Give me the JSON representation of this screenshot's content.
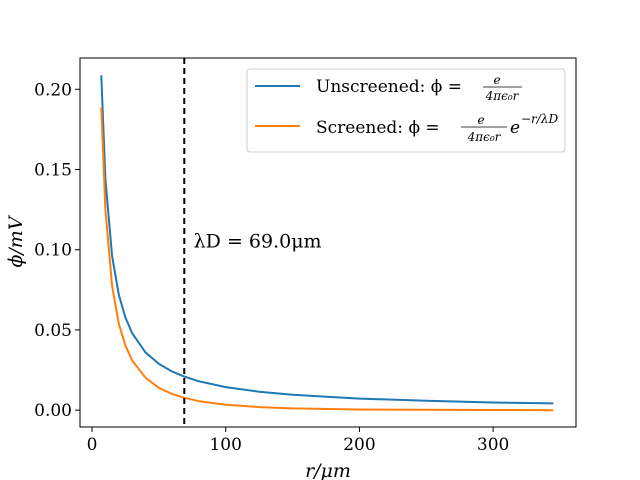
{
  "chart_data": {
    "type": "line",
    "xlabel": "r/μm",
    "ylabel": "ϕ/mV",
    "xlim": [
      -9,
      362
    ],
    "ylim": [
      -0.0105,
      0.2195
    ],
    "xticks": [
      0,
      100,
      200,
      300
    ],
    "xtick_labels": [
      "0",
      "100",
      "200",
      "300"
    ],
    "yticks": [
      0.0,
      0.05,
      0.1,
      0.15,
      0.2
    ],
    "ytick_labels": [
      "0.00",
      "0.05",
      "0.10",
      "0.15",
      "0.20"
    ],
    "grid": false,
    "legend_position": "top-right",
    "series": [
      {
        "name": "Unscreened: ϕ = e/(4πϵ₀r)",
        "color": "#1f77b4",
        "x": [
          6.9,
          10,
          15,
          20,
          25,
          30,
          40,
          50,
          60,
          69,
          80,
          100,
          125,
          150,
          200,
          250,
          300,
          345
        ],
        "y": [
          0.2087,
          0.144,
          0.096,
          0.072,
          0.0576,
          0.048,
          0.036,
          0.0288,
          0.024,
          0.0209,
          0.018,
          0.0144,
          0.0115,
          0.0096,
          0.0072,
          0.0058,
          0.0048,
          0.0042
        ]
      },
      {
        "name": "Screened: ϕ = e/(4πϵ₀r) e^(−r/λD)",
        "color": "#ff7f0e",
        "x": [
          6.9,
          10,
          15,
          20,
          25,
          30,
          40,
          50,
          60,
          69,
          80,
          100,
          125,
          150,
          200,
          250,
          300,
          345
        ],
        "y": [
          0.1888,
          0.1247,
          0.0773,
          0.0539,
          0.0401,
          0.0311,
          0.0202,
          0.0139,
          0.0101,
          0.0077,
          0.0056,
          0.0034,
          0.0019,
          0.0011,
          0.0004,
          0.0002,
          0.0001,
          0.0
        ]
      }
    ],
    "vline": {
      "x": 69.0,
      "style": "dashed",
      "color": "#000000"
    },
    "annotation": {
      "text": "λD = 69.0μm",
      "x": 76,
      "y": 0.105
    },
    "legend": {
      "unscreened": {
        "label": "Unscreened: ϕ =",
        "fraction_num": "e",
        "fraction_den": "4πϵ₀r"
      },
      "screened": {
        "label": "Screened: ϕ =",
        "fraction_num": "e",
        "fraction_den": "4πϵ₀r",
        "exponent_base": "e",
        "exponent": "−r/λD"
      }
    }
  }
}
